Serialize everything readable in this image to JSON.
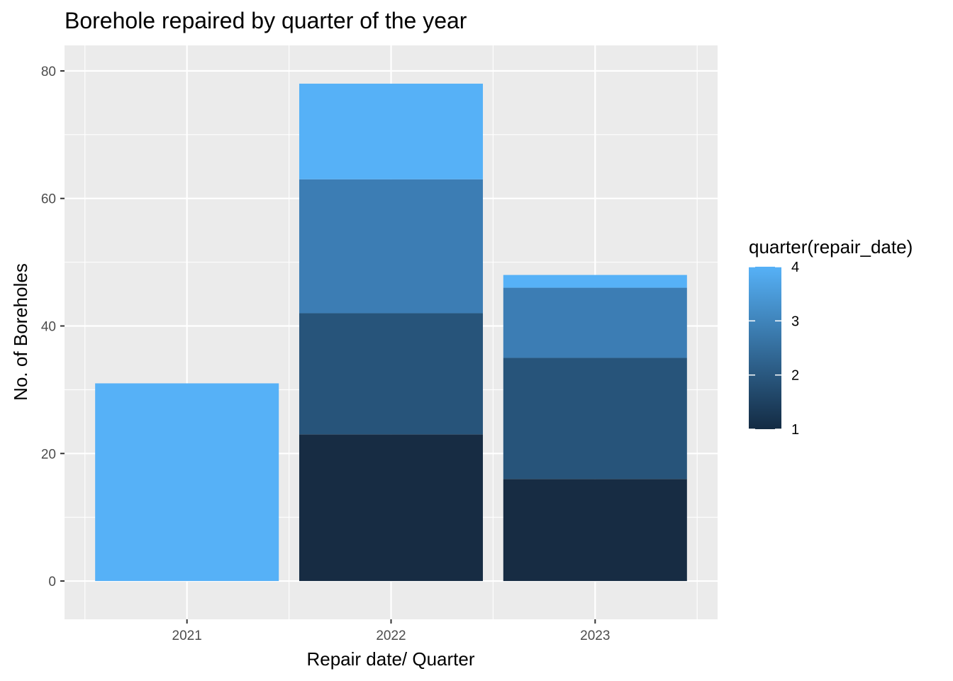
{
  "chart_data": {
    "type": "bar",
    "stacked": true,
    "title": "Borehole repaired by quarter of the year",
    "xlabel": "Repair date/ Quarter",
    "ylabel": "No. of Boreholes",
    "categories": [
      "2021",
      "2022",
      "2023"
    ],
    "ylim": [
      -6,
      84
    ],
    "yticks": [
      0,
      20,
      40,
      60,
      80
    ],
    "grid": true,
    "series": [
      {
        "name": "1",
        "values": [
          0,
          23,
          16
        ],
        "color": "#172C43"
      },
      {
        "name": "2",
        "values": [
          0,
          19,
          19
        ],
        "color": "#27547A"
      },
      {
        "name": "3",
        "values": [
          0,
          21,
          11
        ],
        "color": "#3C7DB4"
      },
      {
        "name": "4",
        "values": [
          31,
          15,
          2
        ],
        "color": "#56B1F7"
      }
    ],
    "legend": {
      "title": "quarter(repair_date)",
      "position": "right",
      "type": "colorbar",
      "breaks": [
        "1",
        "2",
        "3",
        "4"
      ],
      "low_color": "#132B43",
      "high_color": "#56B1F7"
    }
  }
}
